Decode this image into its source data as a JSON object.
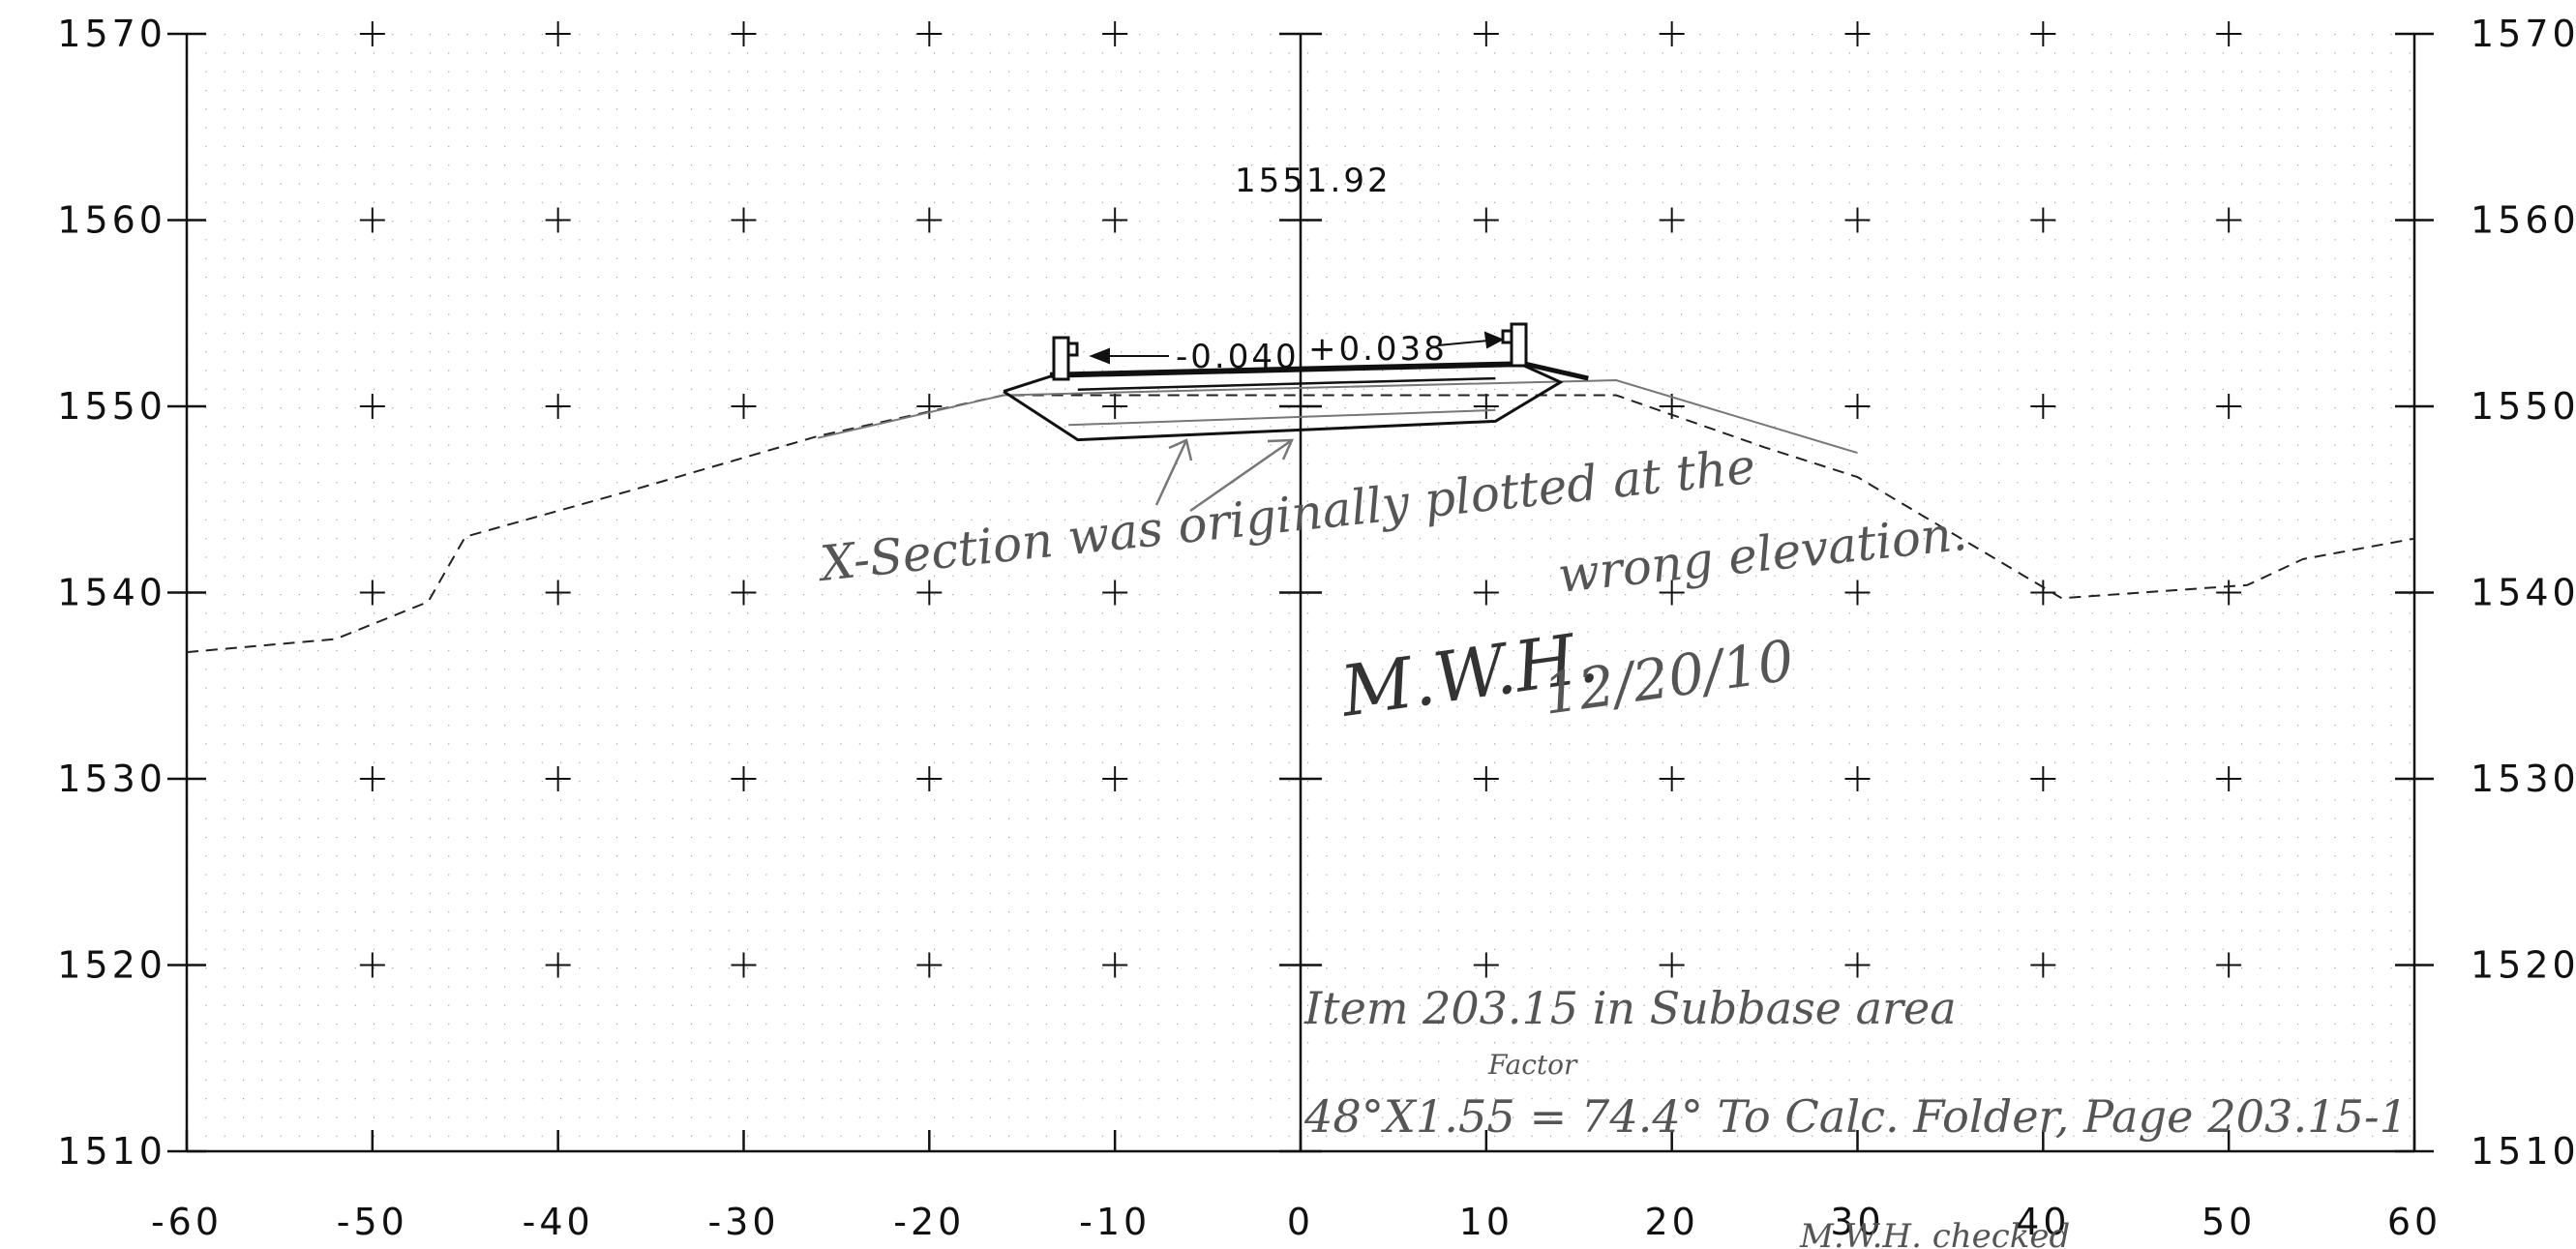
{
  "chart_data": {
    "type": "line",
    "x_ticks": [
      "-60",
      "-50",
      "-40",
      "-30",
      "-20",
      "-10",
      "0",
      "10",
      "20",
      "30",
      "40",
      "50",
      "60"
    ],
    "y_ticks_left": [
      "1570",
      "1560",
      "1550",
      "1540",
      "1530",
      "1520",
      "1510"
    ],
    "y_ticks_right": [
      "1570",
      "1560",
      "1550",
      "1540",
      "1530",
      "1520",
      "1510"
    ],
    "xlim": [
      -60,
      60
    ],
    "ylim": [
      1510,
      1570
    ],
    "grid": "dotted",
    "centerline_label": "1551.92",
    "slope_left_label": "-0.040",
    "slope_right_label": "+0.038",
    "original_ground": [
      {
        "x": -60,
        "y": 1536.8
      },
      {
        "x": -52,
        "y": 1537.5
      },
      {
        "x": -47,
        "y": 1539.5
      },
      {
        "x": -45,
        "y": 1543
      },
      {
        "x": -36,
        "y": 1545.5
      },
      {
        "x": -26,
        "y": 1548.4
      },
      {
        "x": -16,
        "y": 1550.6
      },
      {
        "x": 17,
        "y": 1550.6
      },
      {
        "x": 25,
        "y": 1547.8
      },
      {
        "x": 30,
        "y": 1546.2
      },
      {
        "x": 41,
        "y": 1539.7
      },
      {
        "x": 51,
        "y": 1540.4
      },
      {
        "x": 54,
        "y": 1541.8
      },
      {
        "x": 60,
        "y": 1542.9
      }
    ],
    "replotted_ground": [
      {
        "x": -26,
        "y": 1548.3
      },
      {
        "x": -16,
        "y": 1550.6
      },
      {
        "x": 17,
        "y": 1551.4
      },
      {
        "x": 30,
        "y": 1547.5
      }
    ],
    "roadway_outline": [
      {
        "x": -16,
        "y": 1550.8
      },
      {
        "x": -12,
        "y": 1548.2
      },
      {
        "x": 10.5,
        "y": 1549.2
      },
      {
        "x": 14,
        "y": 1551.3
      },
      {
        "x": 12,
        "y": 1552.2
      },
      {
        "x": -13.5,
        "y": 1551.6
      },
      {
        "x": -16,
        "y": 1550.8
      }
    ],
    "pavement_top": [
      {
        "x": -13.5,
        "y": 1551.7
      },
      {
        "x": 12,
        "y": 1552.3
      },
      {
        "x": 15.5,
        "y": 1551.5
      }
    ],
    "pavement_base": [
      {
        "x": -12,
        "y": 1550.9
      },
      {
        "x": 10.5,
        "y": 1551.5
      }
    ],
    "subbase_line": [
      {
        "x": -12.5,
        "y": 1549
      },
      {
        "x": 10.5,
        "y": 1549.8
      }
    ]
  },
  "annotations": {
    "correction_line_1": "X-Section was originally plotted at the",
    "correction_line_2": "wrong elevation.",
    "signature": "M.W.H.",
    "date": "12/20/10",
    "item_note": "Item 203.15 in Subbase area",
    "factor_label": "Factor",
    "calc_note": "48°X1.55 = 74.4°  To Calc. Folder, Page 203.15-1",
    "bottom_partial": "M.W.H. checked"
  },
  "colors": {
    "ink": "#111111",
    "pencil": "#666666",
    "grid_dot": "#9a9a9a"
  }
}
